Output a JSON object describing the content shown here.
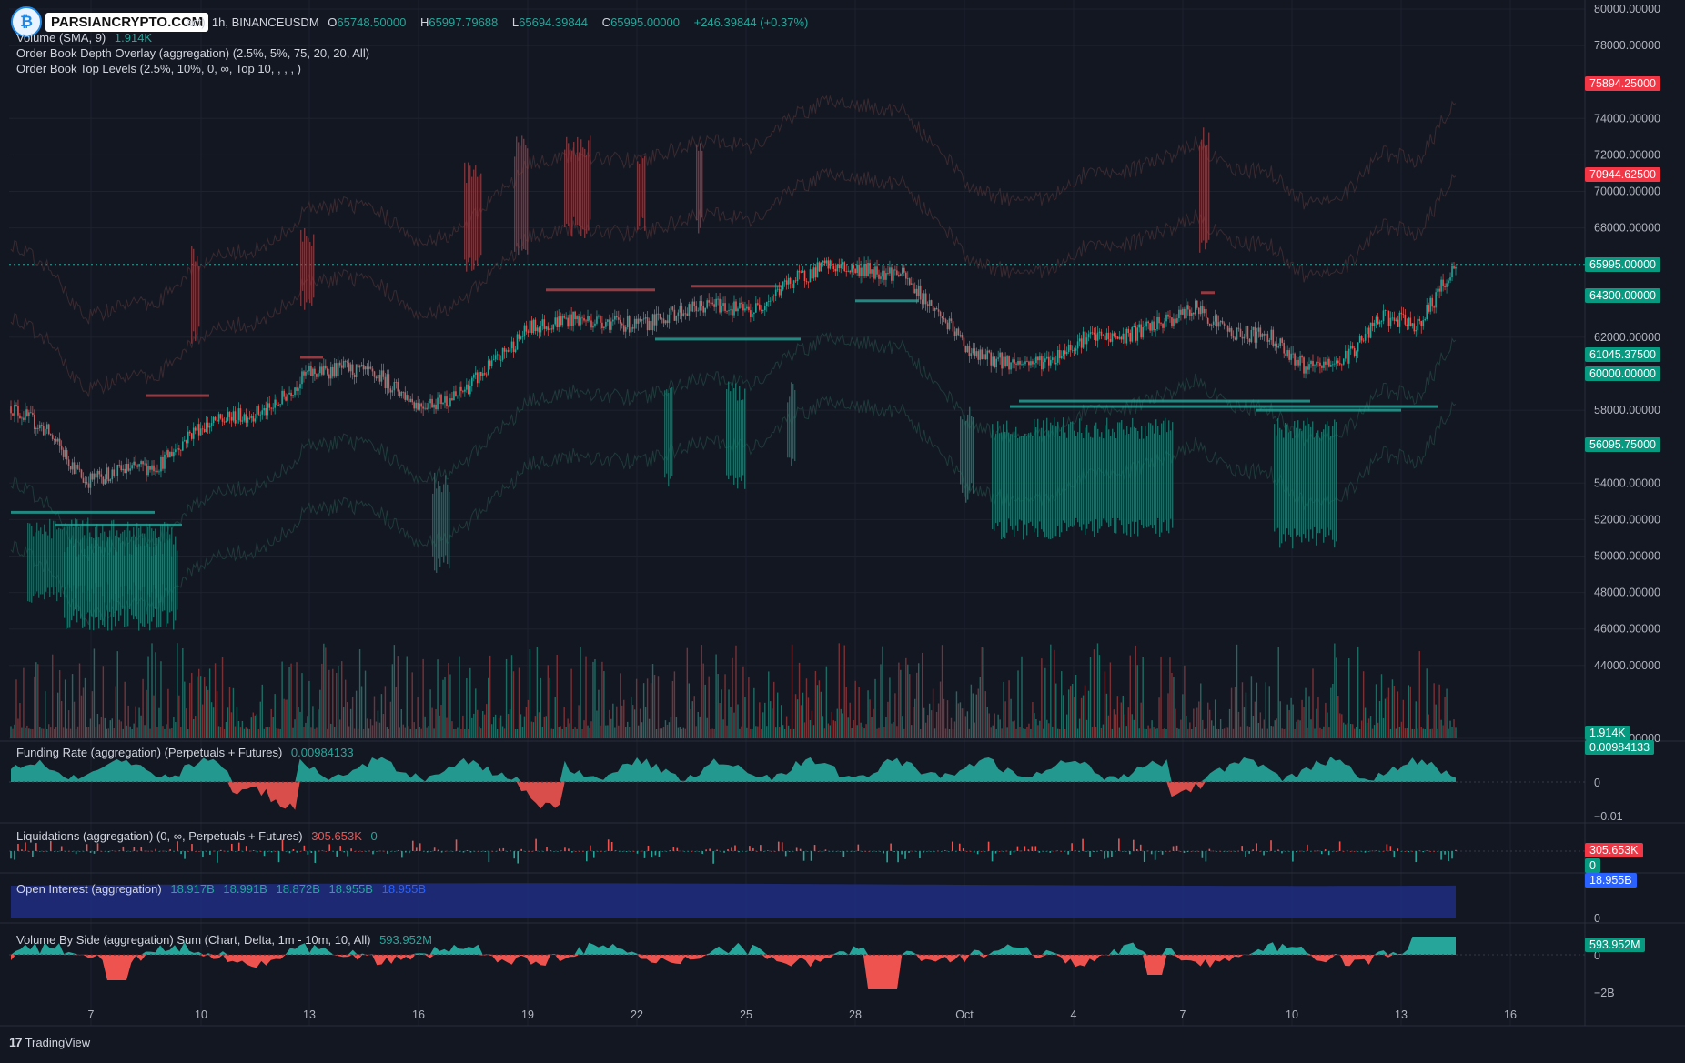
{
  "header": {
    "symbol_suffix": "act), 1h, BINANCEUSDM",
    "ohlc": {
      "o_label": "O",
      "o_value": "65748.50000",
      "h_label": "H",
      "h_value": "65997.79688",
      "l_label": "L",
      "l_value": "65694.39844",
      "c_label": "C",
      "c_value": "65995.00000",
      "change": "+246.39844 (+0.37%)"
    },
    "volume_label": "Volume (SMA, 9)",
    "volume_value": "1.914K",
    "depth_overlay": "Order Book Depth Overlay (aggregation) (2.5%, 5%, 75, 20, 20, All)",
    "top_levels": "Order Book Top Levels (2.5%, 10%, 0, ∞, Top 10, , , , )"
  },
  "logo": {
    "text": "PARSIANCRYPTO.COM",
    "icon": "crypto-logo-icon"
  },
  "footer": {
    "brand": "TradingView",
    "icon": "tradingview-logo-icon"
  },
  "price_axis": {
    "ticks": [
      "80000.00000",
      "78000.00000",
      "74000.00000",
      "72000.00000",
      "70000.00000",
      "68000.00000",
      "62000.00000",
      "58000.00000",
      "54000.00000",
      "52000.00000",
      "50000.00000",
      "48000.00000",
      "46000.00000",
      "44000.00000",
      "40000.00000"
    ],
    "tick_values": [
      80000,
      78000,
      74000,
      72000,
      70000,
      68000,
      62000,
      58000,
      54000,
      52000,
      50000,
      48000,
      46000,
      44000,
      40000
    ],
    "badges": [
      {
        "text": "75894.25000",
        "value": 75894.25,
        "color": "#f23645"
      },
      {
        "text": "70944.62500",
        "value": 70944.625,
        "color": "#f23645"
      },
      {
        "text": "65995.00000",
        "value": 65995,
        "color": "#089981"
      },
      {
        "text": "64300.00000",
        "value": 64300,
        "color": "#089981"
      },
      {
        "text": "61045.37500",
        "value": 61045.375,
        "color": "#089981"
      },
      {
        "text": "60000.00000",
        "value": 60000,
        "color": "#089981"
      },
      {
        "text": "56095.75000",
        "value": 56095.75,
        "color": "#089981"
      }
    ],
    "volume_badge": {
      "text": "1.914K",
      "color": "#089981"
    }
  },
  "time_axis": {
    "labels": [
      "7",
      "10",
      "13",
      "16",
      "19",
      "22",
      "25",
      "28",
      "Oct",
      "4",
      "7",
      "10",
      "13",
      "16"
    ]
  },
  "funding": {
    "label": "Funding Rate (aggregation) (Perpetuals + Futures)",
    "value": "0.00984133",
    "axis": [
      "0",
      "−0.01"
    ],
    "badge": "0.00984133"
  },
  "liquidations": {
    "label": "Liquidations (aggregation) (0, ∞, Perpetuals + Futures)",
    "value_long": "305.653K",
    "value_short": "0",
    "badge_long": "305.653K",
    "badge_short": "0"
  },
  "open_interest": {
    "label": "Open Interest (aggregation)",
    "values": [
      "18.917B",
      "18.991B",
      "18.872B",
      "18.955B",
      "18.955B"
    ],
    "badge": "18.955B",
    "axis": [
      "0"
    ],
    "fill_color": "#1e2b78"
  },
  "volume_by_side": {
    "label": "Volume By Side (aggregation) Sum (Chart, Delta, 1m - 10m, 10, All)",
    "value": "593.952M",
    "badge": "593.952M",
    "axis": [
      "0",
      "−2B"
    ]
  },
  "colors": {
    "up": "#26a69a",
    "down": "#ef5350",
    "bg": "#131722",
    "grid": "#1e222d",
    "axis_text": "#b2b5be"
  },
  "chart_data": {
    "type": "candlestick",
    "x_labels": [
      "7",
      "10",
      "13",
      "16",
      "19",
      "22",
      "25",
      "28",
      "Oct",
      "4",
      "7",
      "10",
      "13",
      "16"
    ],
    "close_path": [
      {
        "x": "Sep 5",
        "y": 58200
      },
      {
        "x": "Sep 6",
        "y": 56800
      },
      {
        "x": "Sep 7",
        "y": 54100
      },
      {
        "x": "Sep 8",
        "y": 54700
      },
      {
        "x": "Sep 9",
        "y": 55000
      },
      {
        "x": "Sep 10",
        "y": 57000
      },
      {
        "x": "Sep 11",
        "y": 57600
      },
      {
        "x": "Sep 12",
        "y": 58000
      },
      {
        "x": "Sep 13",
        "y": 60000
      },
      {
        "x": "Sep 14",
        "y": 60300
      },
      {
        "x": "Sep 15",
        "y": 59800
      },
      {
        "x": "Sep 16",
        "y": 58300
      },
      {
        "x": "Sep 17",
        "y": 58700
      },
      {
        "x": "Sep 18",
        "y": 60500
      },
      {
        "x": "Sep 19",
        "y": 62500
      },
      {
        "x": "Sep 20",
        "y": 63000
      },
      {
        "x": "Sep 21",
        "y": 62900
      },
      {
        "x": "Sep 22",
        "y": 62600
      },
      {
        "x": "Sep 23",
        "y": 63400
      },
      {
        "x": "Sep 24",
        "y": 63800
      },
      {
        "x": "Sep 25",
        "y": 63400
      },
      {
        "x": "Sep 26",
        "y": 65000
      },
      {
        "x": "Sep 27",
        "y": 65900
      },
      {
        "x": "Sep 28",
        "y": 65700
      },
      {
        "x": "Sep 29",
        "y": 65500
      },
      {
        "x": "Sep 30",
        "y": 63400
      },
      {
        "x": "Oct 1",
        "y": 61000
      },
      {
        "x": "Oct 2",
        "y": 60600
      },
      {
        "x": "Oct 3",
        "y": 60700
      },
      {
        "x": "Oct 4",
        "y": 62000
      },
      {
        "x": "Oct 5",
        "y": 62000
      },
      {
        "x": "Oct 6",
        "y": 62700
      },
      {
        "x": "Oct 7",
        "y": 63600
      },
      {
        "x": "Oct 8",
        "y": 62200
      },
      {
        "x": "Oct 9",
        "y": 62100
      },
      {
        "x": "Oct 10",
        "y": 60200
      },
      {
        "x": "Oct 11",
        "y": 60800
      },
      {
        "x": "Oct 12",
        "y": 63100
      },
      {
        "x": "Oct 13",
        "y": 62700
      },
      {
        "x": "Oct 14",
        "y": 66000
      }
    ],
    "last_close": 65995,
    "grid": true
  }
}
